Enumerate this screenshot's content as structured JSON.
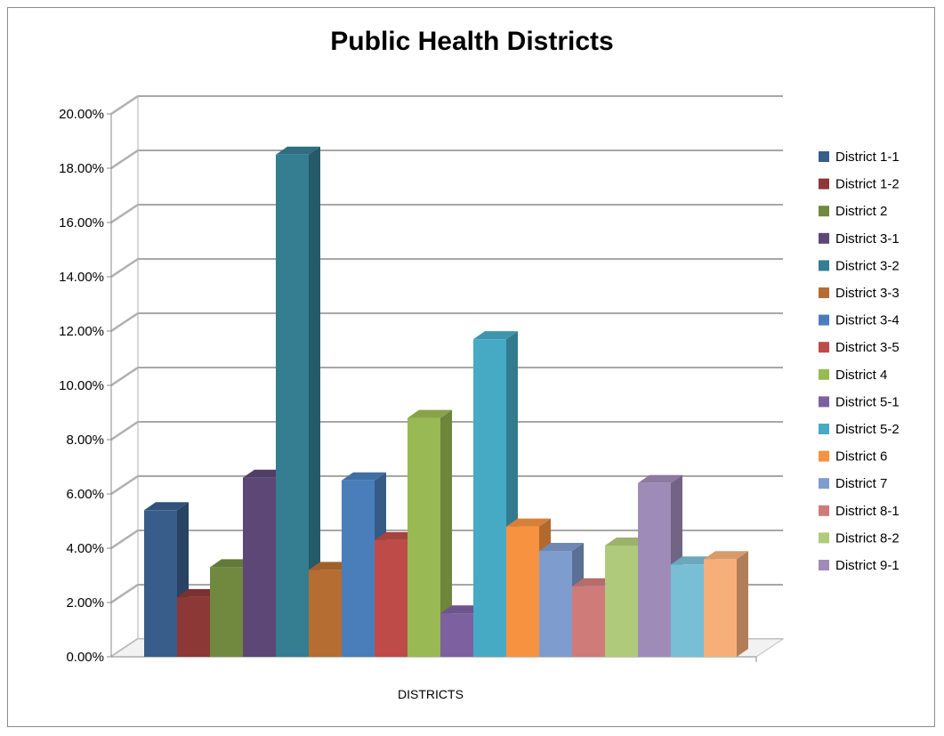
{
  "chart_data": {
    "type": "bar",
    "title": "Public Health Districts",
    "xlabel": "DISTRICTS",
    "ylabel": "",
    "ylim": [
      0,
      20
    ],
    "y_ticks": [
      "0.00%",
      "2.00%",
      "4.00%",
      "6.00%",
      "8.00%",
      "10.00%",
      "12.00%",
      "14.00%",
      "16.00%",
      "18.00%",
      "20.00%"
    ],
    "grid": true,
    "legend_position": "right",
    "categories": [
      "DISTRICTS"
    ],
    "series": [
      {
        "name": "District 1-1",
        "value": 5.4,
        "color": "#385D8A"
      },
      {
        "name": "District 1-2",
        "value": 2.2,
        "color": "#8C3836"
      },
      {
        "name": "District 2",
        "value": 3.3,
        "color": "#71893F"
      },
      {
        "name": "District 3-1",
        "value": 6.6,
        "color": "#5C4776"
      },
      {
        "name": "District 3-2",
        "value": 18.5,
        "color": "#357D91"
      },
      {
        "name": "District 3-3",
        "value": 3.2,
        "color": "#B66D31"
      },
      {
        "name": "District 3-4",
        "value": 6.5,
        "color": "#4A7EBB"
      },
      {
        "name": "District 3-5",
        "value": 4.3,
        "color": "#BE4B48"
      },
      {
        "name": "District 4",
        "value": 8.8,
        "color": "#98B954"
      },
      {
        "name": "District 5-1",
        "value": 1.6,
        "color": "#7D60A0"
      },
      {
        "name": "District 5-2",
        "value": 11.7,
        "color": "#46AAC5"
      },
      {
        "name": "District 6",
        "value": 4.8,
        "color": "#F69240"
      },
      {
        "name": "District 7",
        "value": 3.9,
        "color": "#7E9CCE"
      },
      {
        "name": "District 8-1",
        "value": 2.6,
        "color": "#CF7B79"
      },
      {
        "name": "District 8-2",
        "value": 4.1,
        "color": "#AFCA7B"
      },
      {
        "name": "District 9-1",
        "value": 6.4,
        "color": "#9F8BB8"
      },
      {
        "name": "",
        "value": 3.4,
        "color": "#78BFD6"
      },
      {
        "name": "",
        "value": 3.6,
        "color": "#F7AF7A"
      }
    ]
  }
}
